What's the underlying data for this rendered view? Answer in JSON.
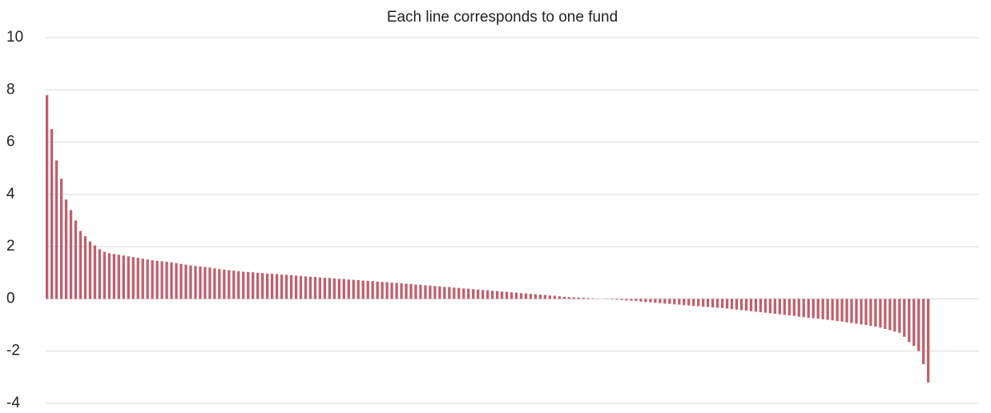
{
  "chart_data": {
    "type": "bar",
    "title": "Each line corresponds to one fund",
    "color": "#c0606c",
    "ylim": [
      -4,
      10
    ],
    "yticks": [
      -4,
      -2,
      0,
      2,
      4,
      6,
      8,
      10
    ],
    "grid": true,
    "values": [
      7.8,
      6.5,
      5.3,
      4.6,
      3.8,
      3.4,
      3.0,
      2.6,
      2.4,
      2.2,
      2.05,
      1.9,
      1.8,
      1.75,
      1.72,
      1.69,
      1.66,
      1.63,
      1.6,
      1.57,
      1.54,
      1.51,
      1.48,
      1.46,
      1.44,
      1.42,
      1.4,
      1.37,
      1.34,
      1.31,
      1.28,
      1.26,
      1.24,
      1.22,
      1.2,
      1.17,
      1.14,
      1.12,
      1.1,
      1.08,
      1.06,
      1.04,
      1.03,
      1.02,
      1.0,
      0.99,
      0.97,
      0.96,
      0.95,
      0.93,
      0.92,
      0.91,
      0.89,
      0.88,
      0.86,
      0.85,
      0.84,
      0.82,
      0.81,
      0.8,
      0.78,
      0.77,
      0.76,
      0.74,
      0.73,
      0.72,
      0.7,
      0.69,
      0.68,
      0.66,
      0.65,
      0.64,
      0.62,
      0.61,
      0.6,
      0.58,
      0.57,
      0.55,
      0.54,
      0.52,
      0.51,
      0.49,
      0.48,
      0.46,
      0.45,
      0.43,
      0.42,
      0.4,
      0.39,
      0.37,
      0.36,
      0.34,
      0.33,
      0.31,
      0.3,
      0.28,
      0.27,
      0.25,
      0.24,
      0.22,
      0.21,
      0.19,
      0.18,
      0.16,
      0.15,
      0.13,
      0.12,
      0.1,
      0.08,
      0.07,
      0.06,
      0.05,
      0.04,
      0.03,
      0.02,
      0.01,
      0,
      -0.01,
      -0.02,
      -0.03,
      -0.04,
      -0.06,
      -0.07,
      -0.08,
      -0.1,
      -0.12,
      -0.13,
      -0.15,
      -0.16,
      -0.18,
      -0.19,
      -0.21,
      -0.22,
      -0.24,
      -0.25,
      -0.27,
      -0.28,
      -0.3,
      -0.31,
      -0.33,
      -0.34,
      -0.35,
      -0.37,
      -0.39,
      -0.41,
      -0.43,
      -0.45,
      -0.47,
      -0.49,
      -0.51,
      -0.53,
      -0.55,
      -0.57,
      -0.59,
      -0.61,
      -0.63,
      -0.65,
      -0.68,
      -0.7,
      -0.72,
      -0.74,
      -0.76,
      -0.78,
      -0.8,
      -0.82,
      -0.85,
      -0.87,
      -0.9,
      -0.92,
      -0.95,
      -0.98,
      -1.0,
      -1.03,
      -1.06,
      -1.1,
      -1.15,
      -1.2,
      -1.25,
      -1.3,
      -1.45,
      -1.65,
      -1.8,
      -2.0,
      -2.5,
      -3.2
    ]
  }
}
